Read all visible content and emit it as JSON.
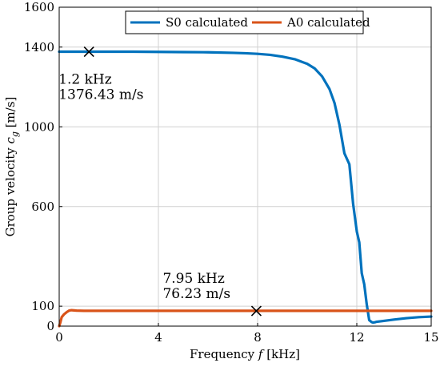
{
  "chart_data": {
    "type": "line",
    "xlabel": {
      "prefix": "Frequency ",
      "var": "f",
      "suffix": " [kHz]"
    },
    "ylabel": {
      "prefix": "Group velocity ",
      "var": "c",
      "sub": "g",
      "suffix": " [m/s]"
    },
    "xlim": [
      0,
      15
    ],
    "ylim": [
      0,
      1600
    ],
    "x_ticks": [
      0,
      4,
      8,
      12,
      15
    ],
    "y_ticks": [
      0,
      100,
      600,
      1000,
      1400,
      1600
    ],
    "grid": true,
    "legend_position": "top-center",
    "series": [
      {
        "name": "S0 calculated",
        "color": "#0072bd",
        "x": [
          0,
          1,
          2,
          3,
          4,
          5,
          6,
          7,
          7.5,
          8,
          8.5,
          9,
          9.5,
          10,
          10.3,
          10.6,
          10.9,
          11.1,
          11.3,
          11.5,
          11.7,
          11.85,
          12.0,
          12.1,
          12.2,
          12.3,
          12.4,
          12.5,
          12.6,
          12.65,
          12.7,
          12.75,
          12.8,
          13,
          13.5,
          14,
          14.5,
          15
        ],
        "y": [
          1377,
          1377,
          1377,
          1377,
          1376,
          1375,
          1374,
          1371,
          1369,
          1366,
          1361,
          1352,
          1339,
          1316,
          1293,
          1253,
          1189,
          1120,
          1010,
          867,
          812,
          615,
          475,
          420,
          265,
          210,
          110,
          30,
          20,
          18,
          19,
          20,
          22,
          25,
          33,
          40,
          45,
          48
        ]
      },
      {
        "name": "A0 calculated",
        "color": "#d95319",
        "x": [
          0,
          0.05,
          0.1,
          0.2,
          0.3,
          0.4,
          0.5,
          0.7,
          1,
          2,
          4,
          6,
          8,
          10,
          12,
          14,
          15
        ],
        "y": [
          0,
          20,
          45,
          60,
          70,
          78,
          80,
          78,
          77,
          77,
          77,
          77,
          77,
          77,
          77,
          77,
          77
        ]
      }
    ],
    "markers": [
      {
        "x": 1.2,
        "y": 1376.43,
        "label_lines": [
          "1.2 kHz",
          "1376.43 m/s"
        ]
      },
      {
        "x": 7.95,
        "y": 76.23,
        "label_lines": [
          "7.95 kHz",
          "76.23 m/s"
        ]
      }
    ]
  }
}
